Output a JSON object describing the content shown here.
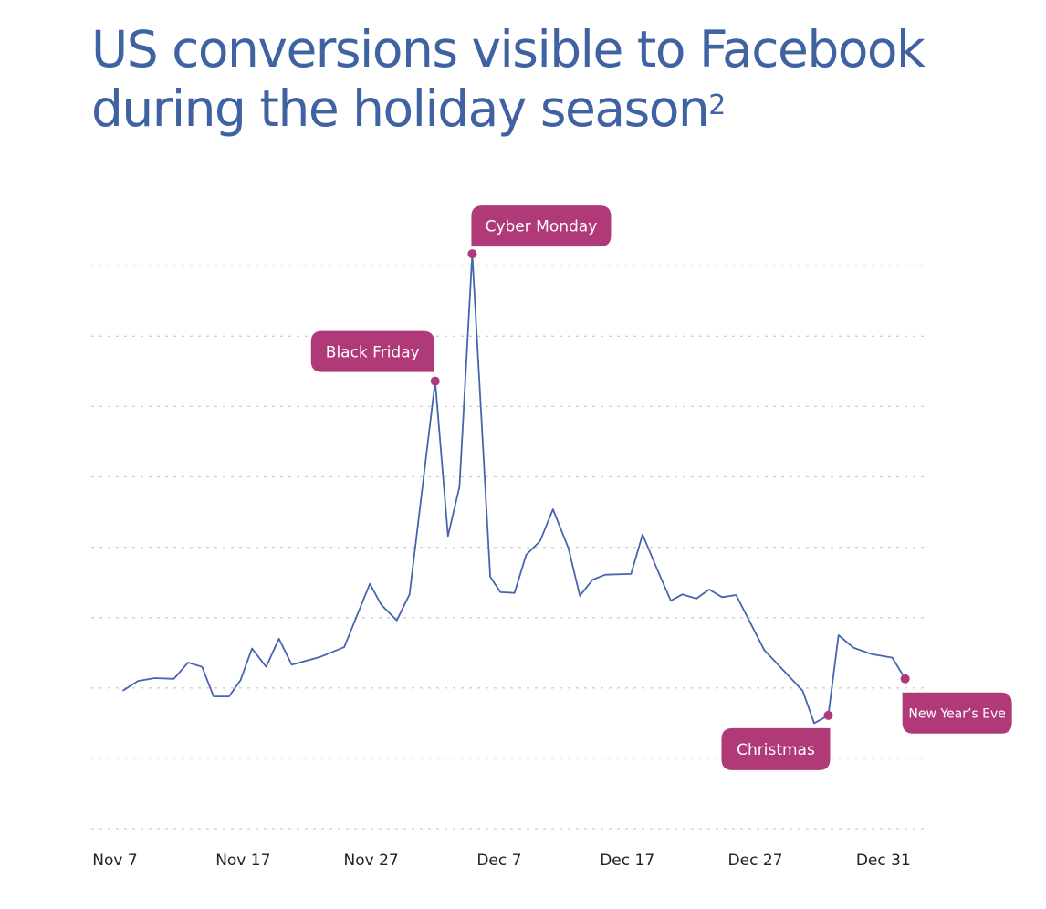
{
  "chart_data": {
    "type": "line",
    "title_line1": "US conversions visible to Facebook",
    "title_line2": "during the holiday season",
    "title_footnote": "2",
    "xlabel": "",
    "ylabel": "",
    "x_unit": "days since Nov 7",
    "y_unit": "relative conversions (gridline units, unlabeled)",
    "ylim": [
      0,
      8
    ],
    "grid": true,
    "x_ticks": [
      {
        "x": 0,
        "label": "Nov 7"
      },
      {
        "x": 10,
        "label": "Nov 17"
      },
      {
        "x": 20,
        "label": "Nov 27"
      },
      {
        "x": 30,
        "label": "Dec 7"
      },
      {
        "x": 40,
        "label": "Dec 17"
      },
      {
        "x": 50,
        "label": "Dec 27"
      },
      {
        "x": 60,
        "label": "Dec 31"
      }
    ],
    "series": [
      {
        "name": "US conversions",
        "color": "#4565ad",
        "x": [
          0.6,
          1.8,
          3.1,
          4.6,
          5.7,
          6.8,
          7.7,
          8.9,
          9.8,
          10.7,
          11.8,
          12.8,
          13.8,
          16.0,
          17.9,
          19.9,
          20.8,
          22.0,
          23.0,
          25.0,
          26.0,
          26.9,
          27.9,
          29.3,
          30.1,
          31.2,
          32.1,
          33.2,
          34.2,
          35.4,
          36.3,
          37.3,
          38.3,
          40.3,
          41.2,
          42.3,
          43.4,
          44.3,
          45.4,
          46.4,
          47.4,
          48.5,
          50.7,
          53.7,
          54.6,
          55.7,
          56.5,
          57.7,
          59.1,
          60.7,
          61.7
        ],
        "values": [
          1.96,
          2.1,
          2.14,
          2.13,
          2.36,
          2.3,
          1.88,
          1.88,
          2.11,
          2.56,
          2.3,
          2.7,
          2.33,
          2.44,
          2.58,
          3.48,
          3.18,
          2.96,
          3.33,
          6.36,
          4.16,
          4.86,
          8.17,
          3.58,
          3.36,
          3.35,
          3.89,
          4.09,
          4.54,
          3.99,
          3.31,
          3.54,
          3.61,
          3.62,
          4.18,
          3.7,
          3.24,
          3.33,
          3.27,
          3.4,
          3.29,
          3.32,
          2.54,
          1.96,
          1.5,
          1.61,
          2.75,
          2.57,
          2.48,
          2.43,
          2.13
        ]
      }
    ],
    "annotations": [
      {
        "label": "Black Friday",
        "point_index": 19
      },
      {
        "label": "Cyber Monday",
        "point_index": 22
      },
      {
        "label": "Christmas",
        "point_index": 45
      },
      {
        "label": "New Year’s Eve",
        "point_index": 50
      }
    ],
    "annotation_color": "#b03a78"
  }
}
